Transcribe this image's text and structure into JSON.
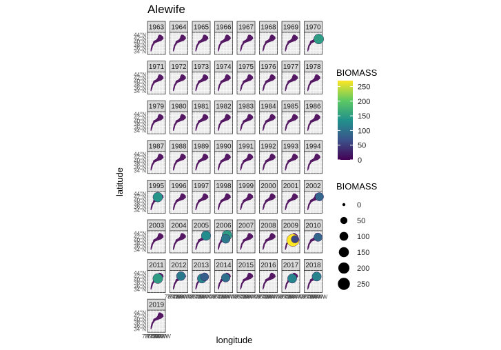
{
  "chart_data": {
    "type": "scatter",
    "title": "Alewife",
    "xlabel": "longitude",
    "ylabel": "latitude",
    "panel_by": "year",
    "panels": [
      "1963",
      "1964",
      "1965",
      "1966",
      "1967",
      "1968",
      "1969",
      "1970",
      "1971",
      "1972",
      "1973",
      "1974",
      "1975",
      "1976",
      "1977",
      "1978",
      "1979",
      "1980",
      "1981",
      "1982",
      "1983",
      "1984",
      "1985",
      "1986",
      "1987",
      "1988",
      "1989",
      "1990",
      "1991",
      "1992",
      "1993",
      "1994",
      "1995",
      "1996",
      "1997",
      "1998",
      "1999",
      "2000",
      "2001",
      "2002",
      "2003",
      "2004",
      "2005",
      "2006",
      "2007",
      "2008",
      "2009",
      "2010",
      "2011",
      "2012",
      "2013",
      "2014",
      "2015",
      "2016",
      "2017",
      "2018",
      "2019"
    ],
    "y_ticks": [
      "44°N",
      "42°N",
      "40°N",
      "38°N",
      "36°N",
      "34°N"
    ],
    "x_ticks": [
      "78°W",
      "76°W",
      "74°W",
      "72°W",
      "70°W",
      "68°W",
      "66°W"
    ],
    "ylim": [
      34,
      45
    ],
    "xlim": [
      -78,
      -65
    ],
    "color_legend": {
      "title": "BIOMASS",
      "scale": "viridis",
      "min": 0,
      "max": 270,
      "ticks": [
        0,
        50,
        100,
        150,
        200,
        250
      ]
    },
    "size_legend": {
      "title": "BIOMASS",
      "values": [
        0,
        50,
        100,
        150,
        200,
        250
      ]
    },
    "highlights": [
      {
        "year": "1970",
        "lon": -67.5,
        "lat": 41.7,
        "biomass": 150
      },
      {
        "year": "1995",
        "lon": -70.5,
        "lat": 42.0,
        "biomass": 140
      },
      {
        "year": "2002",
        "lon": -67.0,
        "lat": 42.2,
        "biomass": 90
      },
      {
        "year": "2005",
        "lon": -68.0,
        "lat": 42.6,
        "biomass": 130
      },
      {
        "year": "2006",
        "lon": -69.0,
        "lat": 42.8,
        "biomass": 150
      },
      {
        "year": "2006",
        "lon": -70.0,
        "lat": 41.0,
        "biomass": 110
      },
      {
        "year": "2009",
        "lon": -70.0,
        "lat": 40.3,
        "biomass": 270
      },
      {
        "year": "2009",
        "lon": -68.5,
        "lat": 40.8,
        "biomass": 60
      },
      {
        "year": "2010",
        "lon": -68.0,
        "lat": 41.8,
        "biomass": 90
      },
      {
        "year": "2011",
        "lon": -70.5,
        "lat": 41.0,
        "biomass": 150
      },
      {
        "year": "2012",
        "lon": -70.0,
        "lat": 42.2,
        "biomass": 110
      },
      {
        "year": "2013",
        "lon": -71.0,
        "lat": 41.0,
        "biomass": 120
      },
      {
        "year": "2013",
        "lon": -69.0,
        "lat": 41.8,
        "biomass": 80
      },
      {
        "year": "2014",
        "lon": -70.0,
        "lat": 41.4,
        "biomass": 100
      },
      {
        "year": "2017",
        "lon": -70.5,
        "lat": 41.0,
        "biomass": 120
      },
      {
        "year": "2018",
        "lon": -69.0,
        "lat": 42.0,
        "biomass": 120
      }
    ]
  }
}
